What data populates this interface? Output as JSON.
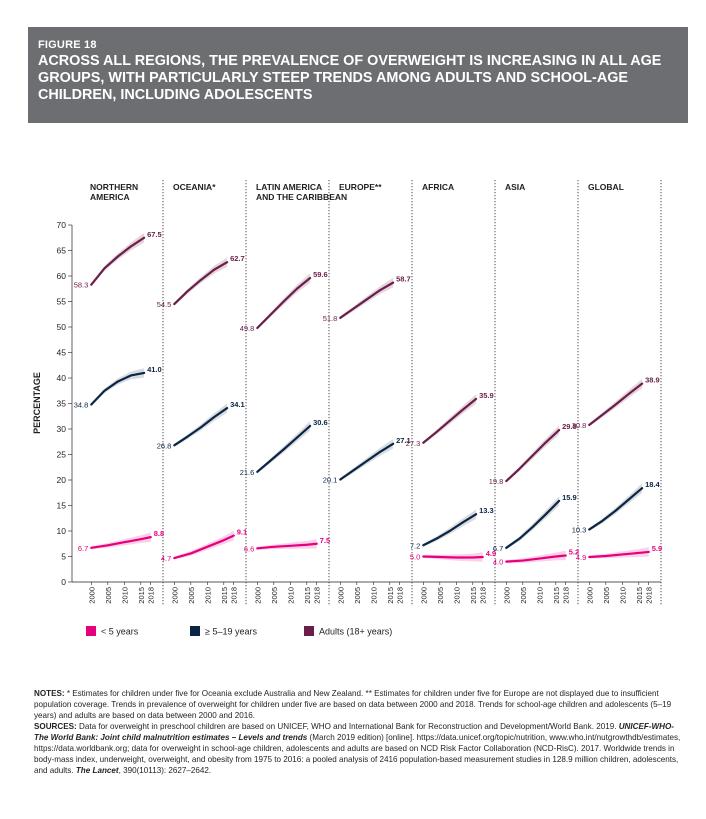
{
  "figure": {
    "label": "FIGURE 18",
    "title": "ACROSS ALL REGIONS, THE PREVALENCE OF OVERWEIGHT IS INCREASING IN ALL AGE GROUPS, WITH PARTICULARLY STEEP TRENDS AMONG ADULTS AND SCHOOL-AGE CHILDREN, INCLUDING ADOLESCENTS"
  },
  "chart_data": {
    "type": "line",
    "ylabel": "PERCENTAGE",
    "ylim": [
      0,
      70
    ],
    "yticks": [
      "0",
      "5",
      "10",
      "15",
      "20",
      "25",
      "30",
      "35",
      "40",
      "45",
      "50",
      "55",
      "60",
      "65",
      "70"
    ],
    "xticks": [
      "2000",
      "2005",
      "2010",
      "2015",
      "2018"
    ],
    "colors": {
      "under5": "#e6007e",
      "school": "#0b2545",
      "adults": "#6b1e48"
    },
    "legend": {
      "placement": "bottom",
      "items": [
        {
          "key": "under5",
          "label": "< 5 years"
        },
        {
          "key": "school",
          "label": "≥ 5–19 years"
        },
        {
          "key": "adults",
          "label": "Adults (18+ years)"
        }
      ]
    },
    "panels": [
      {
        "title": [
          "NORTHERN",
          "AMERICA"
        ],
        "under5": {
          "x": [
            2000,
            2005,
            2010,
            2015,
            2018
          ],
          "y": [
            6.7,
            7.2,
            7.8,
            8.4,
            8.8
          ],
          "start_label": "6.7",
          "end_label": "8.8"
        },
        "school": {
          "x": [
            2000,
            2004,
            2008,
            2012,
            2016
          ],
          "y": [
            34.8,
            37.5,
            39.3,
            40.5,
            41.0
          ],
          "start_label": "34.8",
          "end_label": "41.0"
        },
        "adults": {
          "x": [
            2000,
            2004,
            2008,
            2012,
            2016
          ],
          "y": [
            58.3,
            61.5,
            63.8,
            65.8,
            67.5
          ],
          "start_label": "58.3",
          "end_label": "67.5"
        }
      },
      {
        "title": [
          "OCEANIA*"
        ],
        "under5": {
          "x": [
            2000,
            2005,
            2010,
            2015,
            2018
          ],
          "y": [
            4.7,
            5.6,
            6.9,
            8.2,
            9.1
          ],
          "start_label": "4.7",
          "end_label": "9.1"
        },
        "school": {
          "x": [
            2000,
            2004,
            2008,
            2012,
            2016
          ],
          "y": [
            26.8,
            28.5,
            30.3,
            32.3,
            34.1
          ],
          "start_label": "26.8",
          "end_label": "34.1"
        },
        "adults": {
          "x": [
            2000,
            2004,
            2008,
            2012,
            2016
          ],
          "y": [
            54.5,
            57.0,
            59.2,
            61.2,
            62.7
          ],
          "start_label": "54.5",
          "end_label": "62.7"
        }
      },
      {
        "title": [
          "LATIN AMERICA",
          "AND THE CARIBBEAN"
        ],
        "under5": {
          "x": [
            2000,
            2005,
            2010,
            2015,
            2018
          ],
          "y": [
            6.6,
            6.9,
            7.1,
            7.3,
            7.5
          ],
          "start_label": "6.6",
          "end_label": "7.5"
        },
        "school": {
          "x": [
            2000,
            2004,
            2008,
            2012,
            2016
          ],
          "y": [
            21.6,
            23.8,
            26.0,
            28.3,
            30.6
          ],
          "start_label": "21.6",
          "end_label": "30.6"
        },
        "adults": {
          "x": [
            2000,
            2004,
            2008,
            2012,
            2016
          ],
          "y": [
            49.8,
            52.4,
            55.0,
            57.5,
            59.6
          ],
          "start_label": "49.8",
          "end_label": "59.6"
        }
      },
      {
        "title": [
          "EUROPE**"
        ],
        "under5": null,
        "school": {
          "x": [
            2000,
            2004,
            2008,
            2012,
            2016
          ],
          "y": [
            20.1,
            21.9,
            23.7,
            25.5,
            27.1
          ],
          "start_label": "20.1",
          "end_label": "27.1"
        },
        "adults": {
          "x": [
            2000,
            2004,
            2008,
            2012,
            2016
          ],
          "y": [
            51.8,
            53.6,
            55.4,
            57.2,
            58.7
          ],
          "start_label": "51.8",
          "end_label": "58.7"
        }
      },
      {
        "title": [
          "AFRICA"
        ],
        "under5": {
          "x": [
            2000,
            2005,
            2010,
            2015,
            2018
          ],
          "y": [
            5.0,
            4.9,
            4.8,
            4.8,
            4.9
          ],
          "start_label": "5.0",
          "end_label": "4.9"
        },
        "school": {
          "x": [
            2000,
            2004,
            2008,
            2012,
            2016
          ],
          "y": [
            7.2,
            8.5,
            10.0,
            11.7,
            13.3
          ],
          "start_label": "7.2",
          "end_label": "13.3"
        },
        "adults": {
          "x": [
            2000,
            2004,
            2008,
            2012,
            2016
          ],
          "y": [
            27.3,
            29.4,
            31.6,
            33.8,
            35.9
          ],
          "start_label": "27.3",
          "end_label": "35.9"
        }
      },
      {
        "title": [
          "ASIA"
        ],
        "under5": {
          "x": [
            2000,
            2005,
            2010,
            2015,
            2018
          ],
          "y": [
            4.0,
            4.2,
            4.6,
            5.0,
            5.2
          ],
          "start_label": "4.0",
          "end_label": "5.2"
        },
        "school": {
          "x": [
            2000,
            2004,
            2008,
            2012,
            2016
          ],
          "y": [
            6.7,
            8.5,
            10.8,
            13.3,
            15.9
          ],
          "start_label": "6.7",
          "end_label": "15.9"
        },
        "adults": {
          "x": [
            2000,
            2004,
            2008,
            2012,
            2016
          ],
          "y": [
            19.8,
            22.2,
            24.8,
            27.4,
            29.8
          ],
          "start_label": "19.8",
          "end_label": "29.8"
        }
      },
      {
        "title": [
          "GLOBAL"
        ],
        "under5": {
          "x": [
            2000,
            2005,
            2010,
            2015,
            2018
          ],
          "y": [
            4.9,
            5.1,
            5.4,
            5.7,
            5.9
          ],
          "start_label": "4.9",
          "end_label": "5.9"
        },
        "school": {
          "x": [
            2000,
            2004,
            2008,
            2012,
            2016
          ],
          "y": [
            10.3,
            12.0,
            14.0,
            16.2,
            18.4
          ],
          "start_label": "10.3",
          "end_label": "18.4"
        },
        "adults": {
          "x": [
            2000,
            2004,
            2008,
            2012,
            2016
          ],
          "y": [
            30.8,
            32.8,
            34.8,
            36.9,
            38.9
          ],
          "start_label": "30.8",
          "end_label": "38.9"
        }
      }
    ]
  },
  "notes": {
    "notes_label": "NOTES:",
    "notes_text": " * Estimates for children under five for Oceania exclude Australia and New Zealand. ** Estimates for children under five for Europe are not displayed due to insufficient population coverage. Trends in prevalence of overweight for children under five are based on data between 2000 and 2018. Trends for school-age children and adolescents (5–19 years) and adults are based on data between 2000 and 2016.",
    "sources_label": "SOURCES:",
    "sources_text_1": " Data for overweight in preschool children are based on UNICEF, WHO and International Bank for Reconstruction and Development/World Bank. 2019. ",
    "sources_italic_1": "UNICEF-WHO-The World Bank: Joint child malnutrition estimates – Levels and trends",
    "sources_text_2": " (March 2019 edition) [online]. https://data.unicef.org/topic/nutrition, www.who.int/nutgrowthdb/estimates, https://data.worldbank.org; data for overweight in school-age children, adolescents and adults are based on NCD Risk Factor Collaboration (NCD-RisC). 2017. Worldwide trends in body-mass index, underweight, overweight, and obesity from 1975 to 2016: a pooled analysis of 2416 population-based measurement studies in 128.9 million children, adolescents, and adults. ",
    "sources_italic_2": "The Lancet",
    "sources_text_3": ", 390(10113): 2627–2642."
  }
}
